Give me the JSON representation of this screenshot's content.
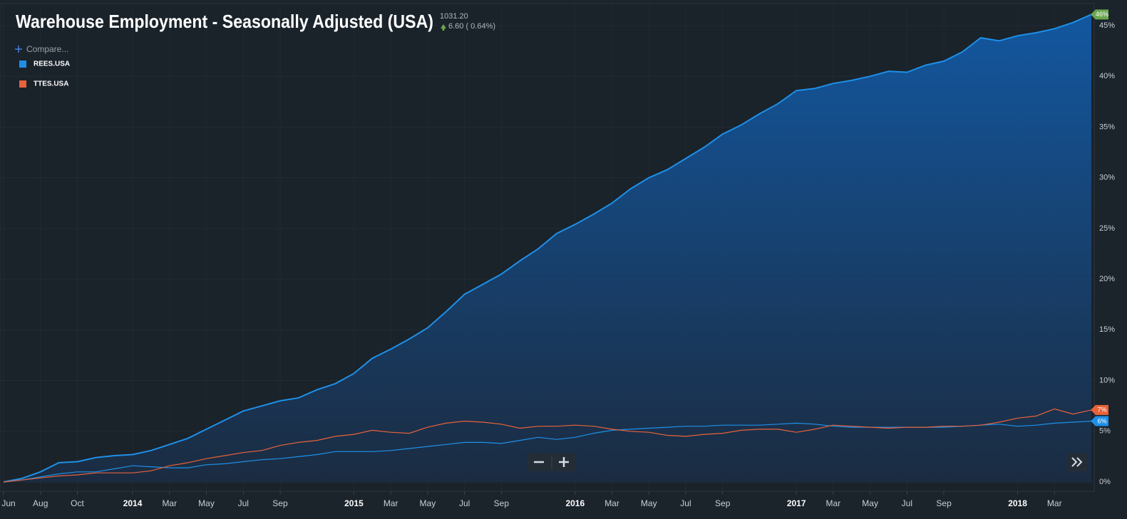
{
  "chart_data": {
    "type": "area-line",
    "title": "Warehouse Employment - Seasonally Adjusted (USA)",
    "last_value": "1031.20",
    "change": "6.60 ( 0.64%)",
    "compare_label": "Compare...",
    "grid": true,
    "x": [
      "2013-06",
      "2013-07",
      "2013-08",
      "2013-09",
      "2013-10",
      "2013-11",
      "2013-12",
      "2014-01",
      "2014-02",
      "2014-03",
      "2014-04",
      "2014-05",
      "2014-06",
      "2014-07",
      "2014-08",
      "2014-09",
      "2014-10",
      "2014-11",
      "2014-12",
      "2015-01",
      "2015-02",
      "2015-03",
      "2015-04",
      "2015-05",
      "2015-06",
      "2015-07",
      "2015-08",
      "2015-09",
      "2015-10",
      "2015-11",
      "2015-12",
      "2016-01",
      "2016-02",
      "2016-03",
      "2016-04",
      "2016-05",
      "2016-06",
      "2016-07",
      "2016-08",
      "2016-09",
      "2016-10",
      "2016-11",
      "2016-12",
      "2017-01",
      "2017-02",
      "2017-03",
      "2017-04",
      "2017-05",
      "2017-06",
      "2017-07",
      "2017-08",
      "2017-09",
      "2017-10",
      "2017-11",
      "2017-12",
      "2018-01",
      "2018-02",
      "2018-03",
      "2018-04",
      "2018-05"
    ],
    "xticks": [
      {
        "value": "2013-06",
        "label": "Jun"
      },
      {
        "value": "2013-08",
        "label": "Aug"
      },
      {
        "value": "2013-10",
        "label": "Oct"
      },
      {
        "value": "2014-01",
        "label": "2014"
      },
      {
        "value": "2014-03",
        "label": "Mar"
      },
      {
        "value": "2014-05",
        "label": "May"
      },
      {
        "value": "2014-07",
        "label": "Jul"
      },
      {
        "value": "2014-09",
        "label": "Sep"
      },
      {
        "value": "2015-01",
        "label": "2015"
      },
      {
        "value": "2015-03",
        "label": "Mar"
      },
      {
        "value": "2015-05",
        "label": "May"
      },
      {
        "value": "2015-07",
        "label": "Jul"
      },
      {
        "value": "2015-09",
        "label": "Sep"
      },
      {
        "value": "2016-01",
        "label": "2016"
      },
      {
        "value": "2016-03",
        "label": "Mar"
      },
      {
        "value": "2016-05",
        "label": "May"
      },
      {
        "value": "2016-07",
        "label": "Jul"
      },
      {
        "value": "2016-09",
        "label": "Sep"
      },
      {
        "value": "2017-01",
        "label": "2017"
      },
      {
        "value": "2017-03",
        "label": "Mar"
      },
      {
        "value": "2017-05",
        "label": "May"
      },
      {
        "value": "2017-07",
        "label": "Jul"
      },
      {
        "value": "2017-09",
        "label": "Sep"
      },
      {
        "value": "2018-01",
        "label": "2018"
      },
      {
        "value": "2018-03",
        "label": "Mar"
      }
    ],
    "ylim": [
      0,
      45
    ],
    "yticks": [
      {
        "value": 0,
        "label": "0%"
      },
      {
        "value": 5,
        "label": "5%"
      },
      {
        "value": 10,
        "label": "10%"
      },
      {
        "value": 15,
        "label": "15%"
      },
      {
        "value": 20,
        "label": "20%"
      },
      {
        "value": 25,
        "label": "25%"
      },
      {
        "value": 30,
        "label": "30%"
      },
      {
        "value": 35,
        "label": "35%"
      },
      {
        "value": 40,
        "label": "40%"
      },
      {
        "value": 45,
        "label": "45%"
      }
    ],
    "series": [
      {
        "color": "#1e90e8",
        "fill": true,
        "last_label": "46%",
        "label_color": "#6aa84f",
        "values": [
          0,
          0.35,
          1.0,
          1.9,
          2.0,
          2.4,
          2.6,
          2.7,
          3.1,
          3.7,
          4.3,
          5.2,
          6.1,
          7.0,
          7.5,
          8.0,
          8.3,
          9.1,
          9.7,
          10.7,
          12.2,
          13.1,
          14.1,
          15.2,
          16.8,
          18.5,
          19.5,
          20.5,
          21.8,
          23.0,
          24.5,
          25.4,
          26.4,
          27.5,
          28.9,
          30.0,
          30.8,
          31.9,
          33.0,
          34.3,
          35.2,
          36.3,
          37.3,
          38.6,
          38.8,
          39.3,
          39.6,
          40.0,
          40.5,
          40.4,
          41.1,
          41.5,
          42.4,
          43.8,
          43.5,
          44.0,
          44.3,
          44.7,
          45.3,
          46.1
        ]
      },
      {
        "name": "REES.USA",
        "color": "#1e90e8",
        "last_label": "6%",
        "label_color": "#1e90e8",
        "values": [
          0,
          0.2,
          0.5,
          0.8,
          1.0,
          1.0,
          1.3,
          1.6,
          1.5,
          1.4,
          1.4,
          1.7,
          1.8,
          2.0,
          2.2,
          2.3,
          2.5,
          2.7,
          3.0,
          3.0,
          3.0,
          3.1,
          3.3,
          3.5,
          3.7,
          3.9,
          3.9,
          3.8,
          4.1,
          4.4,
          4.2,
          4.4,
          4.8,
          5.1,
          5.2,
          5.3,
          5.4,
          5.5,
          5.5,
          5.6,
          5.6,
          5.6,
          5.7,
          5.8,
          5.7,
          5.5,
          5.4,
          5.4,
          5.4,
          5.4,
          5.4,
          5.4,
          5.5,
          5.6,
          5.7,
          5.5,
          5.6,
          5.8,
          5.9,
          6.0
        ]
      },
      {
        "name": "TTES.USA",
        "color": "#e8623a",
        "last_label": "7%",
        "label_color": "#e8623a",
        "values": [
          0,
          0.2,
          0.4,
          0.6,
          0.7,
          0.9,
          0.9,
          0.9,
          1.1,
          1.6,
          1.9,
          2.3,
          2.6,
          2.9,
          3.1,
          3.6,
          3.9,
          4.1,
          4.5,
          4.7,
          5.1,
          4.9,
          4.8,
          5.4,
          5.8,
          6.0,
          5.9,
          5.7,
          5.3,
          5.5,
          5.5,
          5.6,
          5.5,
          5.2,
          5.0,
          4.9,
          4.6,
          4.5,
          4.7,
          4.8,
          5.1,
          5.2,
          5.2,
          4.9,
          5.2,
          5.6,
          5.5,
          5.4,
          5.3,
          5.4,
          5.4,
          5.5,
          5.5,
          5.6,
          5.9,
          6.3,
          6.5,
          7.2,
          6.7,
          7.1
        ]
      }
    ]
  }
}
